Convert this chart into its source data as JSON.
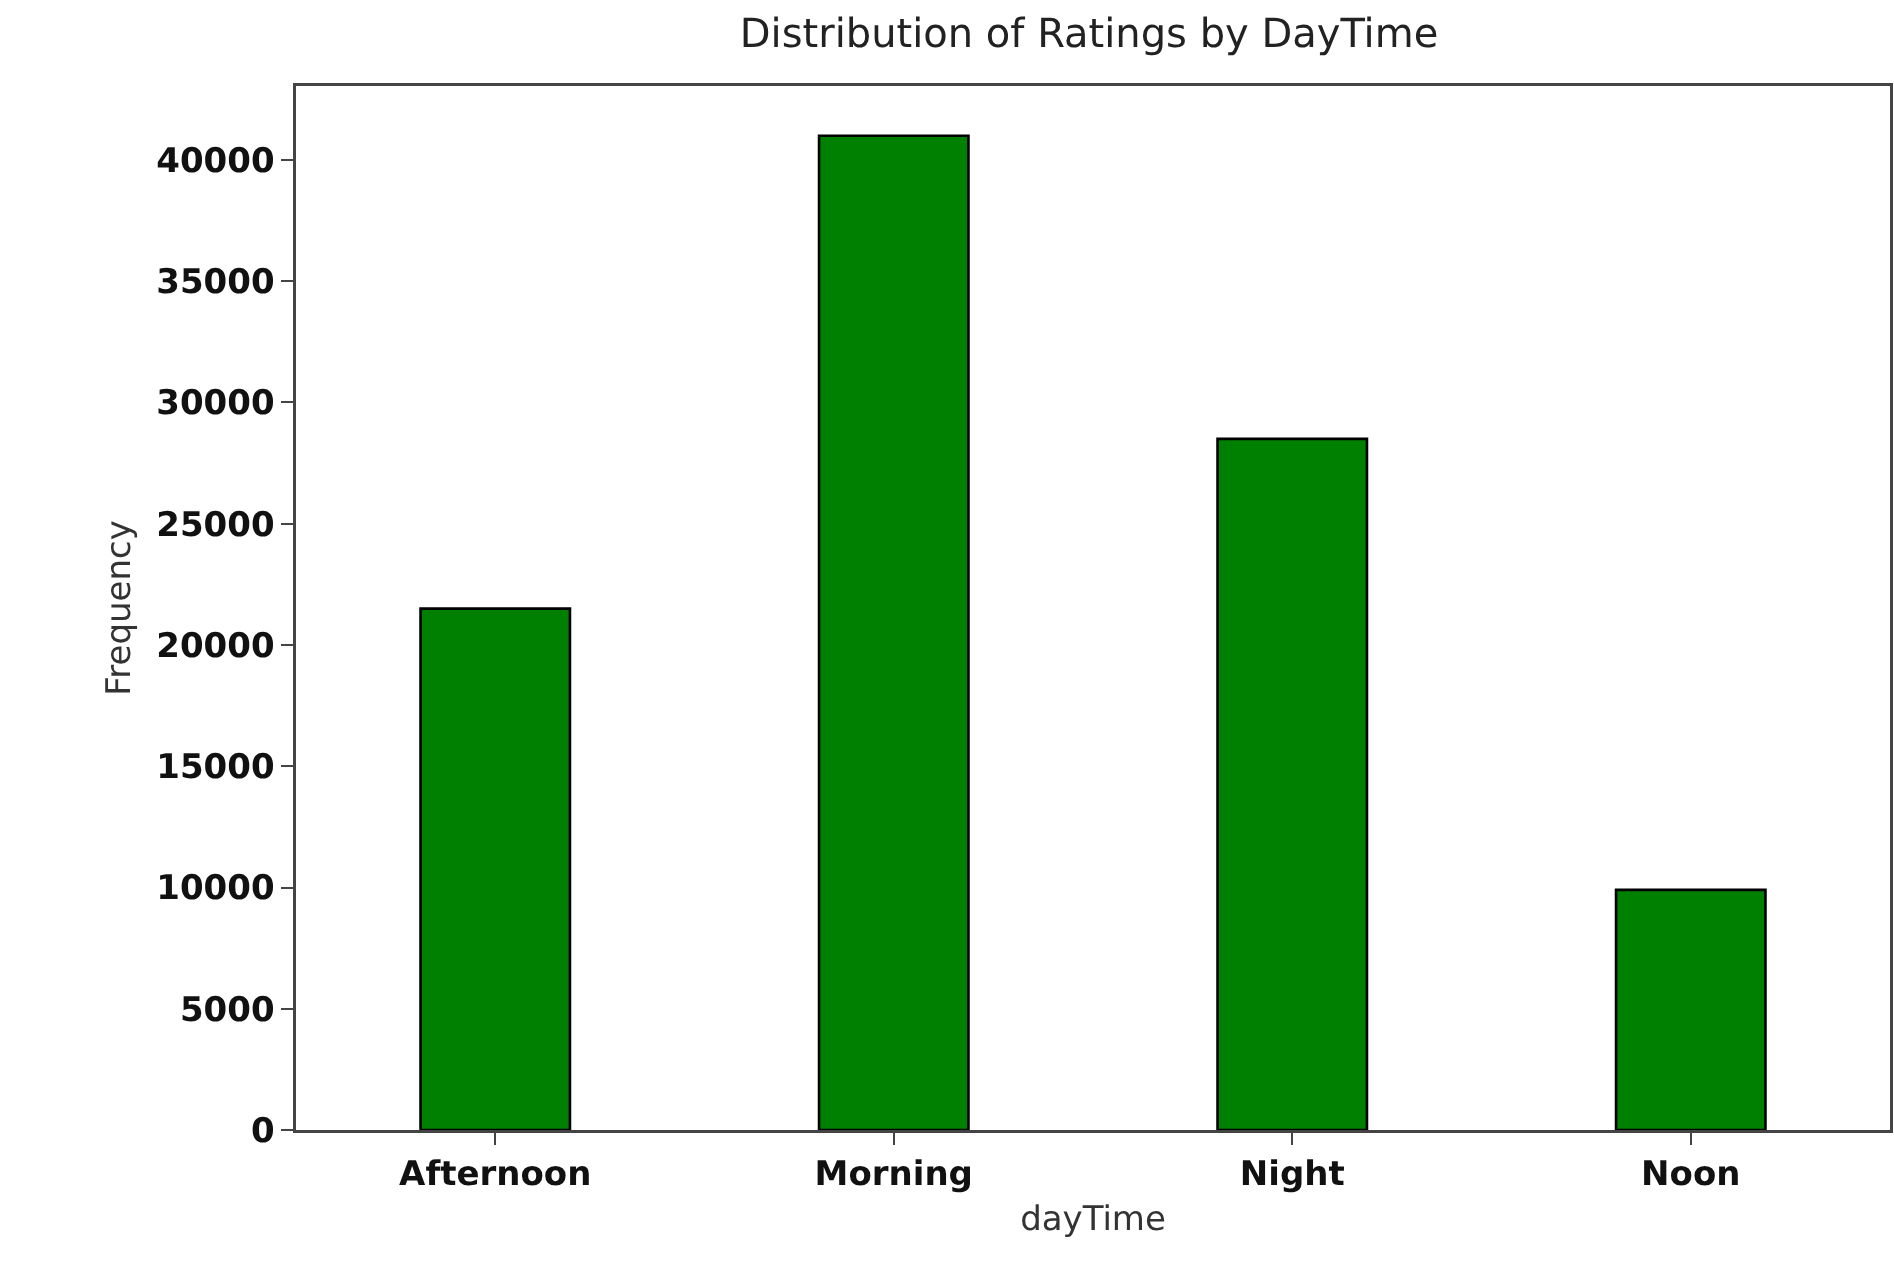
{
  "chart_data": {
    "type": "bar",
    "title": "Distribution of Ratings by DayTime",
    "xlabel": "dayTime",
    "ylabel": "Frequency",
    "categories": [
      "Afternoon",
      "Morning",
      "Night",
      "Noon"
    ],
    "values": [
      21500,
      41000,
      28500,
      9900
    ],
    "color": "#008000",
    "ylim": [
      0,
      43050
    ],
    "yticks": [
      0,
      5000,
      10000,
      15000,
      20000,
      25000,
      30000,
      35000,
      40000
    ],
    "grid": false
  }
}
